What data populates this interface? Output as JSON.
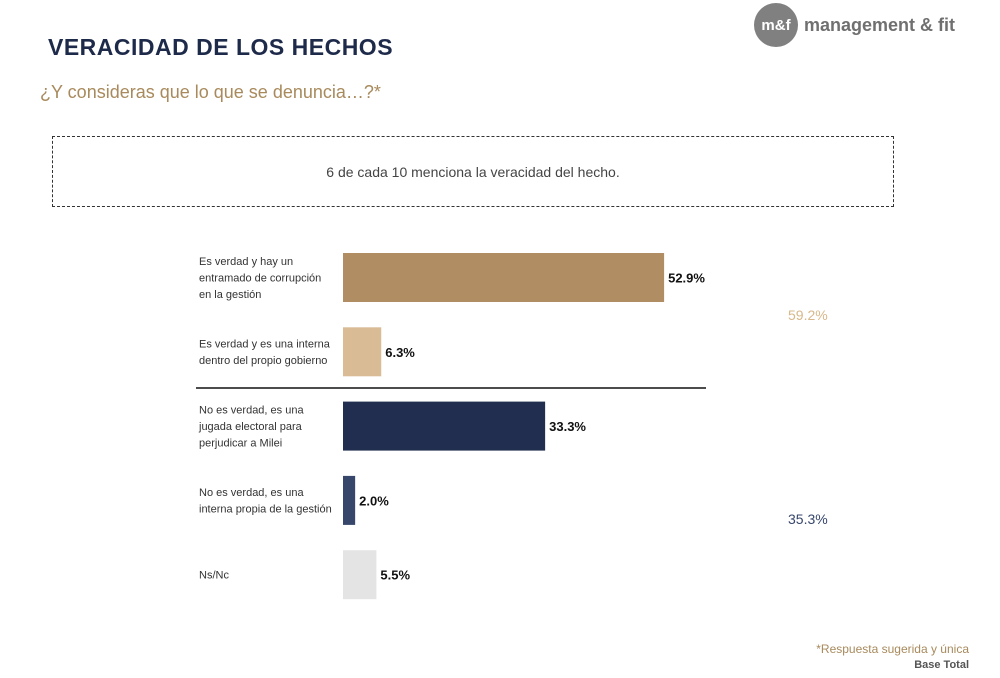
{
  "header": {
    "title": "VERACIDAD DE LOS HECHOS",
    "subtitle": "¿Y consideras que lo que se denuncia…?*"
  },
  "logo": {
    "mark": "m&f",
    "text": "management & fit"
  },
  "callout": {
    "text": "6 de cada 10 menciona la veracidad del hecho."
  },
  "chart_data": {
    "type": "bar",
    "orientation": "horizontal",
    "categories": [
      "Es verdad y hay un entramado de corrupción en la gestión",
      "Es verdad y es una interna dentro del propio gobierno",
      "No es verdad, es una jugada electoral para perjudicar a Milei",
      "No es verdad, es una interna propia de la gestión",
      "Ns/Nc"
    ],
    "category_lines": [
      [
        "Es verdad y hay un",
        "entramado de corrupción",
        "en la gestión"
      ],
      [
        "Es verdad y es una interna",
        "dentro del propio gobierno"
      ],
      [
        "No es verdad, es una",
        "jugada electoral para",
        "perjudicar a Milei"
      ],
      [
        "No es verdad, es una",
        "interna propia de la gestión"
      ],
      [
        "Ns/Nc"
      ]
    ],
    "values": [
      52.9,
      6.3,
      33.3,
      2.0,
      5.5
    ],
    "value_labels": [
      "52.9%",
      "6.3%",
      "33.3%",
      "2.0%",
      "5.5%"
    ],
    "colors": [
      "#b08d62",
      "#d9bc96",
      "#222e4f",
      "#37466b",
      "#e4e4e4"
    ],
    "group_totals": [
      {
        "label": "59.2%",
        "value": 59.2,
        "color": "#d8b88a"
      },
      {
        "label": "35.3%",
        "value": 35.3,
        "color": "#37466b"
      }
    ],
    "grid": false
  },
  "footer": {
    "footnote": "*Respuesta sugerida y única",
    "base": "Base Total"
  }
}
